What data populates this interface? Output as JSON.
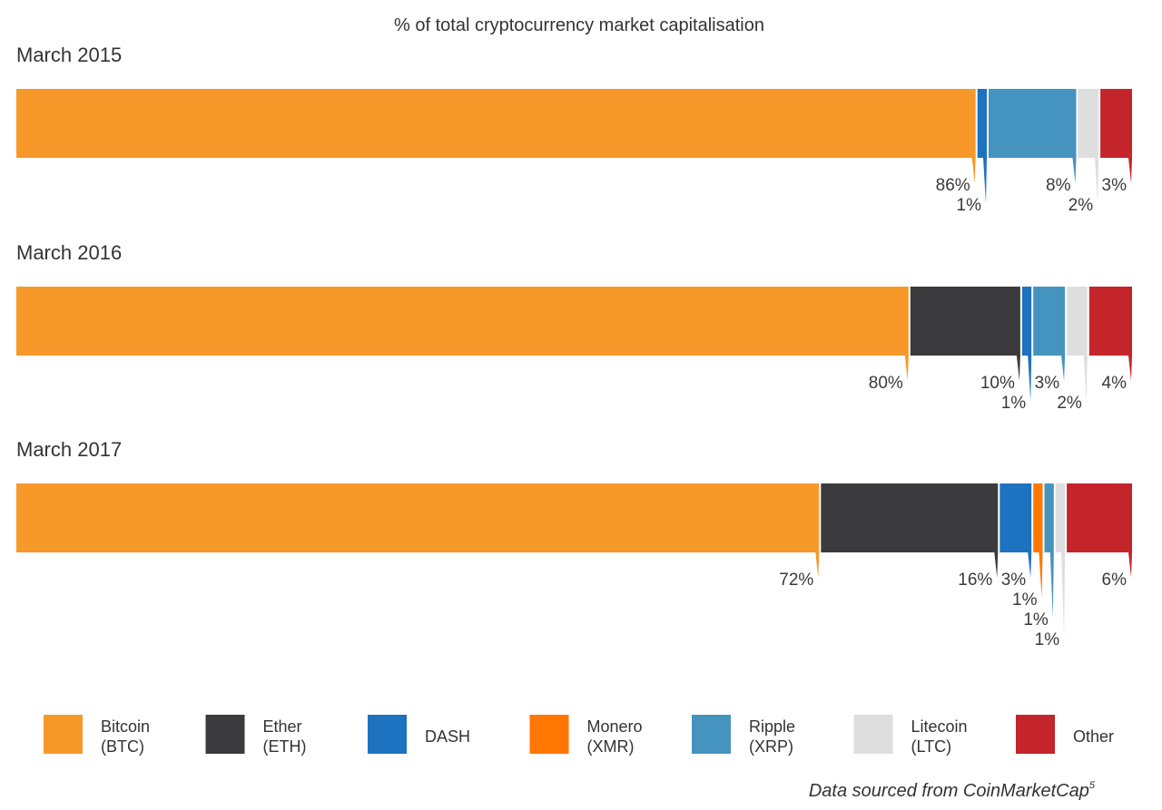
{
  "chart_data": {
    "type": "bar",
    "subtype": "stacked-horizontal-100-percent",
    "title": "% of total cryptocurrency market capitalisation",
    "categories": [
      "March 2015",
      "March 2016",
      "March 2017"
    ],
    "series": [
      {
        "name": "Bitcoin",
        "code": "(BTC)",
        "color": "#f7992a",
        "values": [
          86,
          80,
          72
        ]
      },
      {
        "name": "Ether",
        "code": "(ETH)",
        "color": "#3b3b3d",
        "values": [
          0,
          10,
          16
        ]
      },
      {
        "name": "DASH",
        "code": "",
        "color": "#1d73c0",
        "values": [
          1,
          1,
          3
        ]
      },
      {
        "name": "Monero",
        "code": "(XMR)",
        "color": "#ff7600",
        "values": [
          0,
          0,
          1
        ]
      },
      {
        "name": "Ripple",
        "code": "(XRP)",
        "color": "#4593bf",
        "values": [
          8,
          3,
          1
        ]
      },
      {
        "name": "Litecoin",
        "code": "(LTC)",
        "color": "#dededf",
        "values": [
          2,
          2,
          1
        ]
      },
      {
        "name": "Other",
        "code": "",
        "color": "#c3252a",
        "values": [
          3,
          4,
          6
        ]
      }
    ],
    "data_labels": [
      [
        "86%",
        "",
        "1%",
        "",
        "8%",
        "2%",
        "3%"
      ],
      [
        "80%",
        "10%",
        "1%",
        "",
        "3%",
        "2%",
        "4%"
      ],
      [
        "72%",
        "16%",
        "3%",
        "1%",
        "1%",
        "1%",
        "6%"
      ]
    ],
    "legend_position": "bottom",
    "grid": false
  },
  "source_note": {
    "text": "Data sourced from CoinMarketCap",
    "superscript": "5"
  }
}
